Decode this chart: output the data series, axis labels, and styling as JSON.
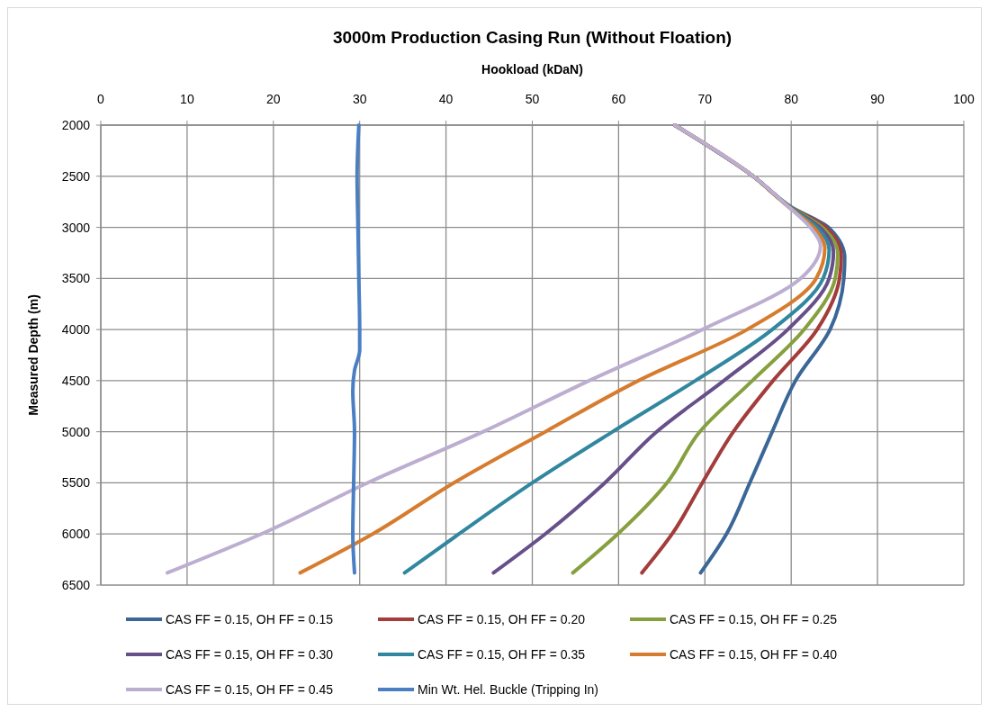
{
  "chart_data": {
    "type": "line",
    "title": "3000m Production Casing Run (Without Floation)",
    "xlabel": "Hookload (kDaN)",
    "ylabel": "Measured Depth (m)",
    "xlim": [
      0,
      100
    ],
    "xticks": [
      0,
      10,
      20,
      30,
      40,
      50,
      60,
      70,
      80,
      90,
      100
    ],
    "ylim": [
      6500,
      2000
    ],
    "yticks": [
      2000,
      2500,
      3000,
      3500,
      4000,
      4500,
      5000,
      5500,
      6000,
      6500
    ],
    "grid": true,
    "legend": "bottom",
    "marker": "none",
    "line_style": "solid",
    "series": [
      {
        "name": "CAS FF = 0.15, OH FF = 0.15",
        "color": "#3a6797",
        "x": [
          66.5,
          75.6,
          80.0,
          84.3,
          86.2,
          86.1,
          84.5,
          80.5,
          77.8,
          75.2,
          72.5,
          69.5
        ],
        "values": [
          2000,
          2500,
          2800,
          3000,
          3300,
          3500,
          4000,
          4500,
          5000,
          5500,
          6000,
          6380
        ]
      },
      {
        "name": "CAS FF = 0.15, OH FF = 0.20",
        "color": "#a33c3a",
        "x": [
          66.5,
          75.6,
          79.9,
          84.0,
          85.8,
          85.6,
          83.0,
          77.9,
          73.3,
          69.7,
          66.2,
          62.7
        ],
        "values": [
          2000,
          2500,
          2800,
          3000,
          3280,
          3500,
          4000,
          4500,
          5000,
          5500,
          6000,
          6380
        ]
      },
      {
        "name": "CAS FF = 0.15, OH FF = 0.25",
        "color": "#86a03f",
        "x": [
          66.5,
          75.6,
          79.9,
          83.6,
          85.4,
          85.1,
          81.5,
          75.5,
          69.4,
          65.6,
          59.9,
          54.7
        ],
        "values": [
          2000,
          2500,
          2800,
          3000,
          3260,
          3500,
          4000,
          4500,
          5000,
          5500,
          6000,
          6380
        ]
      },
      {
        "name": "CAS FF = 0.15, OH FF = 0.30",
        "color": "#674f8a",
        "x": [
          66.5,
          75.6,
          79.8,
          83.3,
          84.9,
          84.4,
          79.6,
          72.2,
          64.4,
          58.4,
          51.5,
          45.5
        ],
        "values": [
          2000,
          2500,
          2800,
          3000,
          3240,
          3500,
          4000,
          4500,
          5000,
          5500,
          6000,
          6380
        ]
      },
      {
        "name": "CAS FF = 0.15, OH FF = 0.35",
        "color": "#31879f",
        "x": [
          66.5,
          75.6,
          79.8,
          83.0,
          84.4,
          83.7,
          77.8,
          68.9,
          59.3,
          50.0,
          41.5,
          35.2
        ],
        "values": [
          2000,
          2500,
          2800,
          3000,
          3220,
          3500,
          4000,
          4500,
          5000,
          5500,
          6000,
          6380
        ]
      },
      {
        "name": "CAS FF = 0.15, OH FF = 0.40",
        "color": "#d67c2f",
        "x": [
          66.5,
          75.6,
          79.7,
          82.6,
          83.9,
          82.9,
          74.9,
          62.3,
          51.5,
          40.9,
          31.5,
          23.1
        ],
        "values": [
          2000,
          2500,
          2800,
          3000,
          3200,
          3500,
          4000,
          4500,
          5000,
          5500,
          6000,
          6380
        ]
      },
      {
        "name": "CAS FF = 0.15, OH FF = 0.45",
        "color": "#bcaed0",
        "x": [
          66.5,
          75.6,
          79.7,
          82.2,
          83.4,
          81.1,
          69.7,
          56.6,
          44.3,
          30.9,
          18.6,
          7.7
        ],
        "values": [
          2000,
          2500,
          2800,
          3000,
          3180,
          3500,
          4000,
          4500,
          5000,
          5500,
          6000,
          6380
        ]
      },
      {
        "name": "Min Wt. Hel. Buckle (Tripping In)",
        "color": "#4a7fc4",
        "x": [
          29.9,
          29.7,
          29.8,
          29.9,
          30.0,
          30.0,
          29.4,
          29.2,
          29.4,
          29.3,
          29.2,
          29.4
        ],
        "values": [
          2000,
          2500,
          3000,
          3500,
          4000,
          4200,
          4400,
          4600,
          5000,
          5500,
          6000,
          6380
        ]
      }
    ]
  }
}
